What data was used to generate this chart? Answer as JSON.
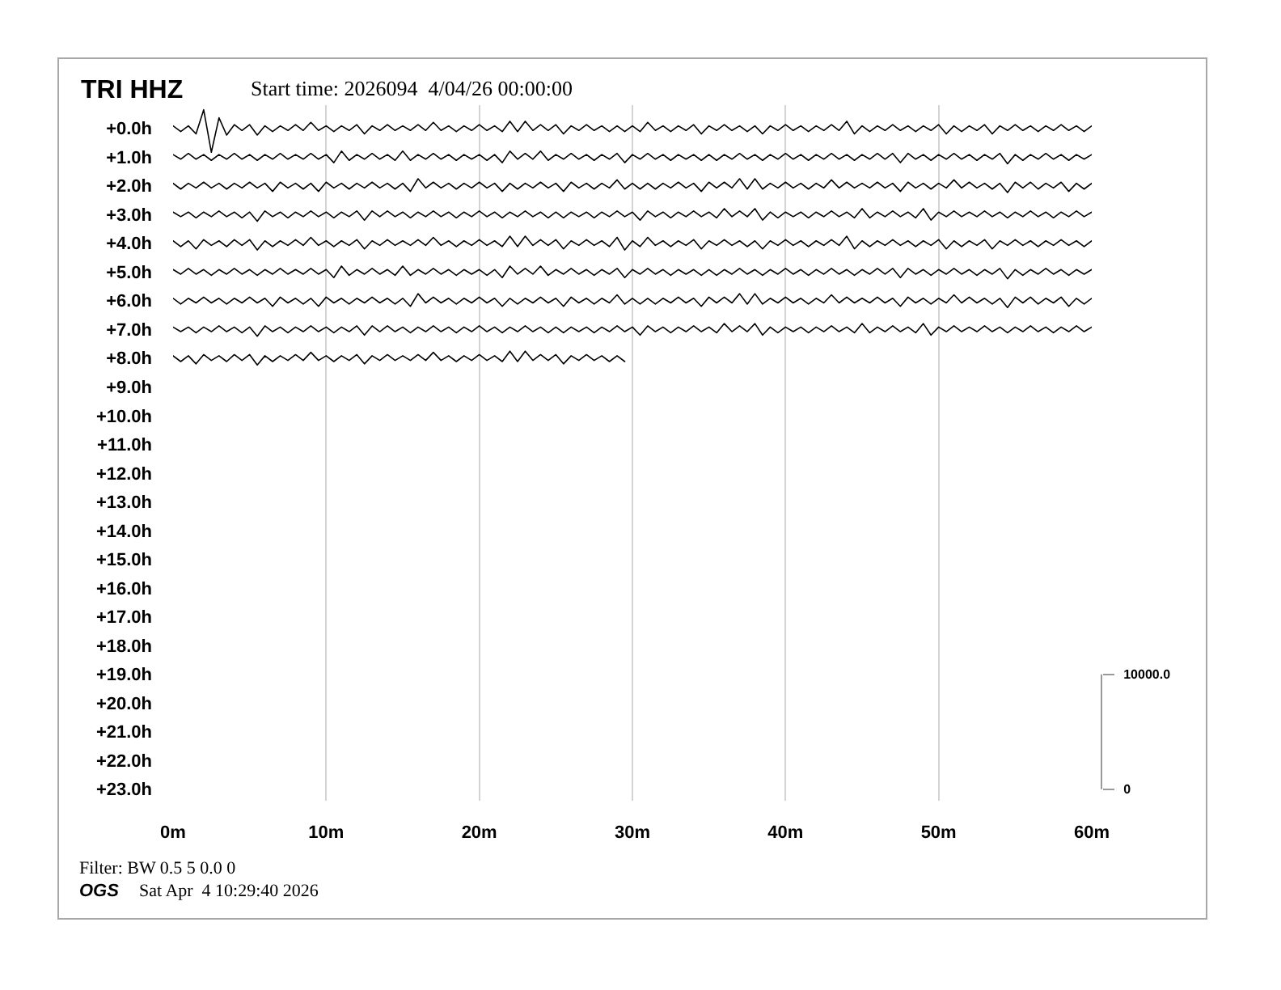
{
  "chart_data": {
    "type": "line",
    "title": "TRI HHZ",
    "subtitle": "Start time: 2026094  4/04/26 00:00:00",
    "annotations": [
      "Filter: BW 0.5 5 0.0 0",
      "OGS",
      "Sat Apr  4 10:29:40 2026"
    ],
    "xlim": [
      0,
      60
    ],
    "xticks": [
      {
        "value": 0,
        "label": "0m"
      },
      {
        "value": 10,
        "label": "10m"
      },
      {
        "value": 20,
        "label": "20m"
      },
      {
        "value": 30,
        "label": "30m"
      },
      {
        "value": 40,
        "label": "40m"
      },
      {
        "value": 50,
        "label": "50m"
      },
      {
        "value": 60,
        "label": "60m"
      }
    ],
    "ylim": [
      23.4,
      -0.8
    ],
    "yticks": [
      {
        "value": 0,
        "label": "+0.0h"
      },
      {
        "value": 1,
        "label": "+1.0h"
      },
      {
        "value": 2,
        "label": "+2.0h"
      },
      {
        "value": 3,
        "label": "+3.0h"
      },
      {
        "value": 4,
        "label": "+4.0h"
      },
      {
        "value": 5,
        "label": "+5.0h"
      },
      {
        "value": 6,
        "label": "+6.0h"
      },
      {
        "value": 7,
        "label": "+7.0h"
      },
      {
        "value": 8,
        "label": "+8.0h"
      },
      {
        "value": 9,
        "label": "+9.0h"
      },
      {
        "value": 10,
        "label": "+10.0h"
      },
      {
        "value": 11,
        "label": "+11.0h"
      },
      {
        "value": 12,
        "label": "+12.0h"
      },
      {
        "value": 13,
        "label": "+13.0h"
      },
      {
        "value": 14,
        "label": "+14.0h"
      },
      {
        "value": 15,
        "label": "+15.0h"
      },
      {
        "value": 16,
        "label": "+16.0h"
      },
      {
        "value": 17,
        "label": "+17.0h"
      },
      {
        "value": 18,
        "label": "+18.0h"
      },
      {
        "value": 19,
        "label": "+19.0h"
      },
      {
        "value": 20,
        "label": "+20.0h"
      },
      {
        "value": 21,
        "label": "+21.0h"
      },
      {
        "value": 22,
        "label": "+22.0h"
      },
      {
        "value": 23,
        "label": "+23.0h"
      }
    ],
    "y2lim": [
      -1000,
      59500
    ],
    "y2ticks": [
      {
        "value": 10000,
        "label": "10000.0"
      },
      0
    ],
    "grid": "x",
    "line_style": "solid",
    "x": [
      0,
      0.5,
      1,
      1.5,
      2,
      2.5,
      3,
      3.5,
      4,
      4.5,
      5,
      5.5,
      6,
      6.5,
      7,
      7.5,
      8,
      8.5,
      9,
      9.5,
      10,
      10.5,
      11,
      11.5,
      12,
      12.5,
      13,
      13.5,
      14,
      14.5,
      15,
      15.5,
      16,
      16.5,
      17,
      17.5,
      18,
      18.5,
      19,
      19.5,
      20,
      20.5,
      21,
      21.5,
      22,
      22.5,
      23,
      23.5,
      24,
      24.5,
      25,
      25.5,
      26,
      26.5,
      27,
      27.5,
      28,
      28.5,
      29,
      29.5,
      30,
      30.5,
      31,
      31.5,
      32,
      32.5,
      33,
      33.5,
      34,
      34.5,
      35,
      35.5,
      36,
      36.5,
      37,
      37.5,
      38,
      38.5,
      39,
      39.5,
      40,
      40.5,
      41,
      41.5,
      42,
      42.5,
      43,
      43.5,
      44,
      44.5,
      45,
      45.5,
      46,
      46.5,
      47,
      47.5,
      48,
      48.5,
      49,
      49.5,
      50,
      50.5,
      51,
      51.5,
      52,
      52.5,
      53,
      53.5,
      54,
      54.5,
      55,
      55.5,
      56,
      56.5,
      57,
      57.5,
      58,
      58.5,
      59,
      59.5,
      60
    ],
    "series": [
      {
        "color": "#000000",
        "axis": "y2",
        "values": [
          57700,
          57200,
          57700,
          57000,
          59100,
          55400,
          58400,
          56900,
          57800,
          57300,
          57800,
          56900,
          57700,
          57200,
          57700,
          57300,
          57800,
          57300,
          58000,
          57300,
          57700,
          57200,
          57700,
          57300,
          57800,
          57000,
          57700,
          57300,
          57800,
          57300,
          57700,
          57300,
          57800,
          57300,
          58000,
          57300,
          57700,
          57200,
          57700,
          57300,
          57800,
          57300,
          57700,
          57200,
          58100,
          57200,
          58100,
          57300,
          57800,
          57300,
          57800,
          57000,
          57700,
          57300,
          57800,
          57300,
          57700,
          57200,
          57700,
          57200,
          57700,
          57200,
          58000,
          57300,
          57700,
          57200,
          57700,
          57300,
          57800,
          57000,
          57700,
          57300,
          57800,
          57300,
          57700,
          57200,
          57700,
          57000,
          57700,
          57300,
          57800,
          57300,
          57700,
          57200,
          57700,
          57300,
          57800,
          57300,
          58100,
          57000,
          57700,
          57200,
          57700,
          57300,
          57800,
          57300,
          57700,
          57200,
          57700,
          57300,
          57800,
          57000,
          57700,
          57200,
          57700,
          57300,
          57800,
          57000,
          57700,
          57300,
          57800,
          57300,
          57700,
          57200,
          57700,
          57300,
          57800,
          57300,
          57700,
          57200,
          57700
        ]
      },
      {
        "color": "#000000",
        "axis": "y2",
        "values": [
          55200,
          54800,
          55300,
          54800,
          55200,
          54700,
          55200,
          54800,
          55300,
          54800,
          55200,
          54700,
          55200,
          54800,
          55300,
          54800,
          55200,
          54800,
          55300,
          54800,
          55200,
          54500,
          55500,
          54700,
          55200,
          54800,
          55300,
          54800,
          55200,
          54700,
          55500,
          54700,
          55200,
          54800,
          55300,
          54800,
          55200,
          54700,
          55200,
          54800,
          55200,
          54700,
          55200,
          54500,
          55500,
          54800,
          55300,
          54800,
          55500,
          54700,
          55200,
          54800,
          55300,
          54800,
          55200,
          54700,
          55200,
          54800,
          55300,
          54500,
          55200,
          54800,
          55300,
          54800,
          55200,
          54700,
          55200,
          54800,
          55200,
          54700,
          55200,
          54700,
          55200,
          54800,
          55300,
          54800,
          55200,
          54700,
          55200,
          54800,
          55300,
          54800,
          55200,
          54700,
          55200,
          54800,
          55300,
          54800,
          55200,
          54700,
          55200,
          54800,
          55300,
          54800,
          55300,
          54500,
          55300,
          54800,
          55200,
          54700,
          55200,
          54800,
          55300,
          54800,
          55200,
          54700,
          55200,
          54800,
          55300,
          54400,
          55200,
          54700,
          55200,
          54800,
          55300,
          54800,
          55200,
          54700,
          55200,
          54800,
          55200
        ]
      },
      {
        "color": "#000000",
        "axis": "y2",
        "values": [
          52700,
          52200,
          52700,
          52300,
          52800,
          52300,
          52700,
          52200,
          52700,
          52300,
          52800,
          52300,
          52700,
          52000,
          52800,
          52300,
          52700,
          52200,
          52700,
          52000,
          52800,
          52300,
          52700,
          52200,
          52700,
          52300,
          52800,
          52300,
          52700,
          52200,
          52700,
          52000,
          53100,
          52300,
          52800,
          52300,
          52700,
          52200,
          52700,
          52300,
          52800,
          52300,
          52700,
          52000,
          52700,
          52200,
          52700,
          52300,
          52800,
          52300,
          52700,
          52000,
          52800,
          52300,
          52700,
          52200,
          52700,
          52300,
          53000,
          52200,
          52700,
          52200,
          52700,
          52200,
          52700,
          52300,
          52800,
          52300,
          52700,
          52000,
          52800,
          52300,
          52800,
          52300,
          53100,
          52200,
          53100,
          52200,
          52700,
          52300,
          52800,
          52300,
          52700,
          52200,
          52700,
          52300,
          53000,
          52300,
          52800,
          52300,
          52700,
          52300,
          52800,
          52300,
          52700,
          52000,
          52800,
          52300,
          52700,
          52200,
          52700,
          52300,
          53000,
          52300,
          52800,
          52300,
          52700,
          52200,
          52700,
          51900,
          52800,
          52300,
          52800,
          52200,
          52700,
          52300,
          52800,
          52000,
          52700,
          52200,
          52700
        ]
      },
      {
        "color": "#000000",
        "axis": "y2",
        "values": [
          50200,
          49800,
          50200,
          49700,
          50200,
          49800,
          50300,
          49800,
          50200,
          49700,
          50200,
          49400,
          50300,
          49800,
          50200,
          49700,
          50200,
          49800,
          50300,
          49800,
          50200,
          49700,
          50200,
          49800,
          50300,
          49500,
          50300,
          49800,
          50300,
          49800,
          50200,
          49700,
          50200,
          49800,
          50300,
          49800,
          50200,
          49700,
          50200,
          49800,
          50300,
          49800,
          50200,
          49700,
          50200,
          49800,
          50300,
          49800,
          50200,
          49700,
          50200,
          49700,
          50200,
          49800,
          50200,
          49700,
          50200,
          49800,
          50300,
          49800,
          50200,
          49500,
          50300,
          49800,
          50200,
          49700,
          50200,
          49800,
          50300,
          49800,
          50200,
          49700,
          50500,
          49800,
          50300,
          49800,
          50500,
          49500,
          50200,
          49700,
          50200,
          49800,
          50200,
          49700,
          50200,
          49800,
          50300,
          49800,
          50200,
          49700,
          50500,
          49700,
          50200,
          49800,
          50300,
          49800,
          50200,
          49700,
          50500,
          49500,
          50200,
          49800,
          50300,
          49800,
          50200,
          49800,
          50300,
          49800,
          50200,
          49700,
          50200,
          49800,
          50300,
          49800,
          50200,
          49700,
          50200,
          49800,
          50300,
          49800,
          50200
        ]
      },
      {
        "color": "#000000",
        "axis": "y2",
        "values": [
          47700,
          47200,
          47700,
          47000,
          47800,
          47300,
          47700,
          47200,
          47800,
          47300,
          47800,
          46900,
          47700,
          47200,
          47700,
          47300,
          47800,
          47300,
          48000,
          47300,
          47700,
          47200,
          47700,
          47300,
          47800,
          47000,
          47700,
          47300,
          47800,
          47300,
          47700,
          47300,
          47800,
          47300,
          48000,
          47300,
          47700,
          47200,
          47700,
          47300,
          47800,
          47300,
          47700,
          47200,
          48100,
          47200,
          48100,
          47300,
          47800,
          47300,
          47800,
          47000,
          47700,
          47300,
          47800,
          47300,
          47700,
          47200,
          48000,
          46900,
          47700,
          47200,
          48000,
          47300,
          47700,
          47200,
          47700,
          47300,
          47800,
          47000,
          47700,
          47300,
          47800,
          47300,
          47700,
          47200,
          47700,
          47000,
          47700,
          47300,
          47800,
          47300,
          47700,
          47200,
          47700,
          47300,
          47800,
          47300,
          48100,
          47000,
          47700,
          47200,
          47700,
          47300,
          47800,
          47300,
          47700,
          47200,
          47700,
          47300,
          47800,
          47000,
          47700,
          47200,
          47700,
          47300,
          47800,
          47000,
          47700,
          47300,
          47800,
          47300,
          47700,
          47200,
          47700,
          47300,
          47800,
          47300,
          47700,
          47200,
          47700
        ]
      },
      {
        "color": "#000000",
        "axis": "y2",
        "values": [
          45200,
          44800,
          45300,
          44800,
          45200,
          44700,
          45200,
          44800,
          45300,
          44800,
          45200,
          44700,
          45200,
          44800,
          45300,
          44800,
          45200,
          44800,
          45300,
          44800,
          45200,
          44500,
          45500,
          44700,
          45200,
          44800,
          45300,
          44800,
          45200,
          44700,
          45500,
          44700,
          45200,
          44800,
          45300,
          44800,
          45200,
          44700,
          45200,
          44800,
          45200,
          44700,
          45200,
          44500,
          45500,
          44800,
          45300,
          44800,
          45500,
          44700,
          45200,
          44800,
          45300,
          44800,
          45200,
          44700,
          45200,
          44800,
          45300,
          44500,
          45200,
          44800,
          45300,
          44800,
          45200,
          44700,
          45200,
          44800,
          45200,
          44700,
          45200,
          44700,
          45200,
          44800,
          45300,
          44800,
          45200,
          44700,
          45200,
          44800,
          45300,
          44800,
          45200,
          44700,
          45200,
          44800,
          45300,
          44800,
          45200,
          44700,
          45200,
          44800,
          45300,
          44800,
          45300,
          44500,
          45300,
          44800,
          45200,
          44700,
          45200,
          44800,
          45300,
          44800,
          45200,
          44700,
          45200,
          44800,
          45300,
          44400,
          45200,
          44700,
          45200,
          44800,
          45300,
          44800,
          45200,
          44700,
          45200,
          44800,
          45200
        ]
      },
      {
        "color": "#000000",
        "axis": "y2",
        "values": [
          42700,
          42200,
          42700,
          42300,
          42800,
          42300,
          42700,
          42200,
          42700,
          42300,
          42800,
          42300,
          42700,
          42000,
          42800,
          42300,
          42700,
          42200,
          42700,
          42000,
          42800,
          42300,
          42700,
          42200,
          42700,
          42300,
          42800,
          42300,
          42700,
          42200,
          42700,
          42000,
          43100,
          42300,
          42800,
          42300,
          42700,
          42200,
          42700,
          42300,
          42800,
          42300,
          42700,
          42000,
          42700,
          42200,
          42700,
          42300,
          42800,
          42300,
          42700,
          42000,
          42800,
          42300,
          42700,
          42200,
          42700,
          42300,
          43000,
          42200,
          42700,
          42200,
          42700,
          42200,
          42700,
          42300,
          42800,
          42300,
          42700,
          42000,
          42800,
          42300,
          42800,
          42300,
          43100,
          42200,
          43100,
          42200,
          42700,
          42300,
          42800,
          42300,
          42700,
          42200,
          42700,
          42300,
          43000,
          42300,
          42800,
          42300,
          42700,
          42300,
          42800,
          42300,
          42700,
          42000,
          42800,
          42300,
          42700,
          42200,
          42700,
          42300,
          43000,
          42300,
          42800,
          42300,
          42700,
          42200,
          42700,
          41900,
          42800,
          42300,
          42800,
          42200,
          42700,
          42300,
          42800,
          42000,
          42700,
          42200,
          42700
        ]
      },
      {
        "color": "#000000",
        "axis": "y2",
        "values": [
          40200,
          39800,
          40200,
          39700,
          40200,
          39800,
          40300,
          39800,
          40200,
          39700,
          40200,
          39400,
          40300,
          39800,
          40200,
          39700,
          40200,
          39800,
          40300,
          39800,
          40200,
          39700,
          40200,
          39800,
          40300,
          39500,
          40300,
          39800,
          40300,
          39800,
          40200,
          39700,
          40200,
          39800,
          40300,
          39800,
          40200,
          39700,
          40200,
          39800,
          40300,
          39800,
          40200,
          39700,
          40200,
          39800,
          40300,
          39800,
          40200,
          39700,
          40200,
          39700,
          40200,
          39800,
          40200,
          39700,
          40200,
          39800,
          40300,
          39800,
          40200,
          39500,
          40300,
          39800,
          40200,
          39700,
          40200,
          39800,
          40300,
          39800,
          40200,
          39700,
          40500,
          39800,
          40300,
          39800,
          40500,
          39500,
          40200,
          39700,
          40200,
          39800,
          40200,
          39700,
          40200,
          39800,
          40300,
          39800,
          40200,
          39700,
          40500,
          39700,
          40200,
          39800,
          40300,
          39800,
          40200,
          39700,
          40500,
          39500,
          40200,
          39800,
          40300,
          39800,
          40200,
          39800,
          40300,
          39800,
          40200,
          39700,
          40200,
          39800,
          40300,
          39800,
          40200,
          39700,
          40200,
          39800,
          40300,
          39800,
          40200
        ]
      },
      {
        "color": "#000000",
        "axis": "y2",
        "x": [
          0,
          0.5,
          1,
          1.5,
          2,
          2.5,
          3,
          3.5,
          4,
          4.5,
          5,
          5.5,
          6,
          6.5,
          7,
          7.5,
          8,
          8.5,
          9,
          9.5,
          10,
          10.5,
          11,
          11.5,
          12,
          12.5,
          13,
          13.5,
          14,
          14.5,
          15,
          15.5,
          16,
          16.5,
          17,
          17.5,
          18,
          18.5,
          19,
          19.5,
          20,
          20.5,
          21,
          21.5,
          22,
          22.5,
          23,
          23.5,
          24,
          24.5,
          25,
          25.5,
          26,
          26.5,
          27,
          27.5,
          28,
          28.5,
          29,
          29.5
        ],
        "values": [
          37700,
          37200,
          37700,
          37000,
          37800,
          37300,
          37700,
          37200,
          37800,
          37300,
          37800,
          36900,
          37700,
          37200,
          37700,
          37300,
          37800,
          37300,
          38000,
          37300,
          37700,
          37200,
          37700,
          37300,
          37800,
          37000,
          37700,
          37300,
          37800,
          37300,
          37700,
          37300,
          37800,
          37300,
          38000,
          37300,
          37700,
          37200,
          37700,
          37300,
          37800,
          37300,
          37700,
          37200,
          38100,
          37200,
          38100,
          37300,
          37800,
          37300,
          37800,
          37000,
          37700,
          37300,
          37800,
          37300,
          37700,
          37200,
          37700,
          37200
        ]
      }
    ]
  }
}
